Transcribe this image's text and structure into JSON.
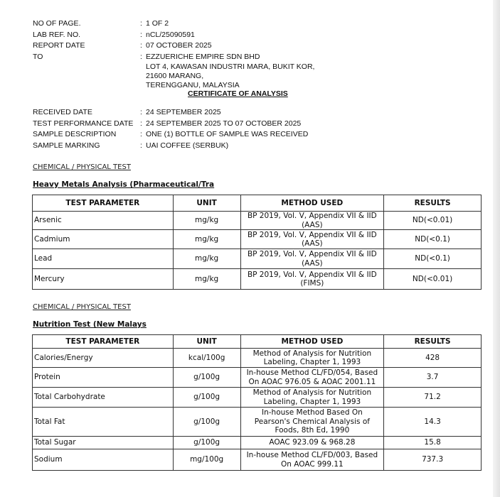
{
  "header": {
    "fields": [
      {
        "label": "NO OF PAGE.",
        "value": "1 OF  2"
      },
      {
        "label": "LAB REF. NO.",
        "value": "nCL/25090591"
      },
      {
        "label": "REPORT DATE",
        "value": "07 OCTOBER 2025"
      },
      {
        "label": "TO",
        "value": "EZZUERICHE EMPIRE SDN BHD"
      }
    ],
    "address": [
      "LOT 4, KAWASAN INDUSTRI MARA, BUKIT KOR,",
      "21600 MARANG,",
      "TERENGGANU, MALAYSIA"
    ]
  },
  "title": "CERTIFICATE OF ANALYSIS",
  "sample": [
    {
      "label": "RECEIVED DATE",
      "value": "24 SEPTEMBER 2025"
    },
    {
      "label": "TEST PERFORMANCE DATE",
      "value": "24 SEPTEMBER 2025 TO 07 OCTOBER 2025"
    },
    {
      "label": "SAMPLE DESCRIPTION",
      "value": "ONE (1) BOTTLE OF SAMPLE WAS RECEIVED"
    },
    {
      "label": "SAMPLE MARKING",
      "value": "UAI COFFEE (SERBUK)"
    }
  ],
  "colon": ":",
  "columns": [
    "TEST PARAMETER",
    "UNIT",
    "METHOD USED",
    "RESULTS"
  ],
  "sections": [
    {
      "heading": "CHEMICAL / PHYSICAL TEST",
      "subheading": "Heavy Metals Analysis (Pharmaceutical/Tra",
      "rows": [
        {
          "param": "Arsenic",
          "unit": "mg/kg",
          "method": [
            "BP 2019, Vol. V, Appendix VII & IID",
            "(AAS)"
          ],
          "result": "ND(<0.01)"
        },
        {
          "param": "Cadmium",
          "unit": "mg/kg",
          "method": [
            "BP 2019, Vol. V, Appendix VII & IID",
            "(AAS)"
          ],
          "result": "ND(<0.1)"
        },
        {
          "param": "Lead",
          "unit": "mg/kg",
          "method": [
            "BP 2019, Vol. V, Appendix VII & IID",
            "(AAS)"
          ],
          "result": "ND(<0.1)"
        },
        {
          "param": "Mercury",
          "unit": "mg/kg",
          "method": [
            "BP 2019, Vol. V, Appendix VII & IID",
            "(FIMS)"
          ],
          "result": "ND(<0.01)"
        }
      ]
    },
    {
      "heading": "CHEMICAL / PHYSICAL TEST",
      "subheading": "Nutrition Test (New Malays",
      "rows": [
        {
          "param": "Calories/Energy",
          "unit": "kcal/100g",
          "method": [
            "Method of Analysis for Nutrition",
            "Labeling, Chapter 1, 1993"
          ],
          "result": "428"
        },
        {
          "param": "Protein",
          "unit": "g/100g",
          "method": [
            "In-house Method CL/FD/054, Based",
            "On AOAC 976.05 & AOAC 2001.11"
          ],
          "result": "3.7"
        },
        {
          "param": "Total Carbohydrate",
          "unit": "g/100g",
          "method": [
            "Method of Analysis for Nutrition",
            "Labeling, Chapter 1, 1993"
          ],
          "result": "71.2"
        },
        {
          "param": "Total Fat",
          "unit": "g/100g",
          "method": [
            "In-house Method Based On",
            "Pearson's Chemical Analysis of",
            "Foods, 8th Ed, 1990"
          ],
          "result": "14.3"
        },
        {
          "param": "Total Sugar",
          "unit": "g/100g",
          "method": [
            "AOAC 923.09 & 968.28"
          ],
          "result": "15.8"
        },
        {
          "param": "Sodium",
          "unit": "mg/100g",
          "method": [
            "In-house Method CL/FD/003, Based",
            "On AOAC 999.11"
          ],
          "result": "737.3"
        }
      ]
    }
  ]
}
